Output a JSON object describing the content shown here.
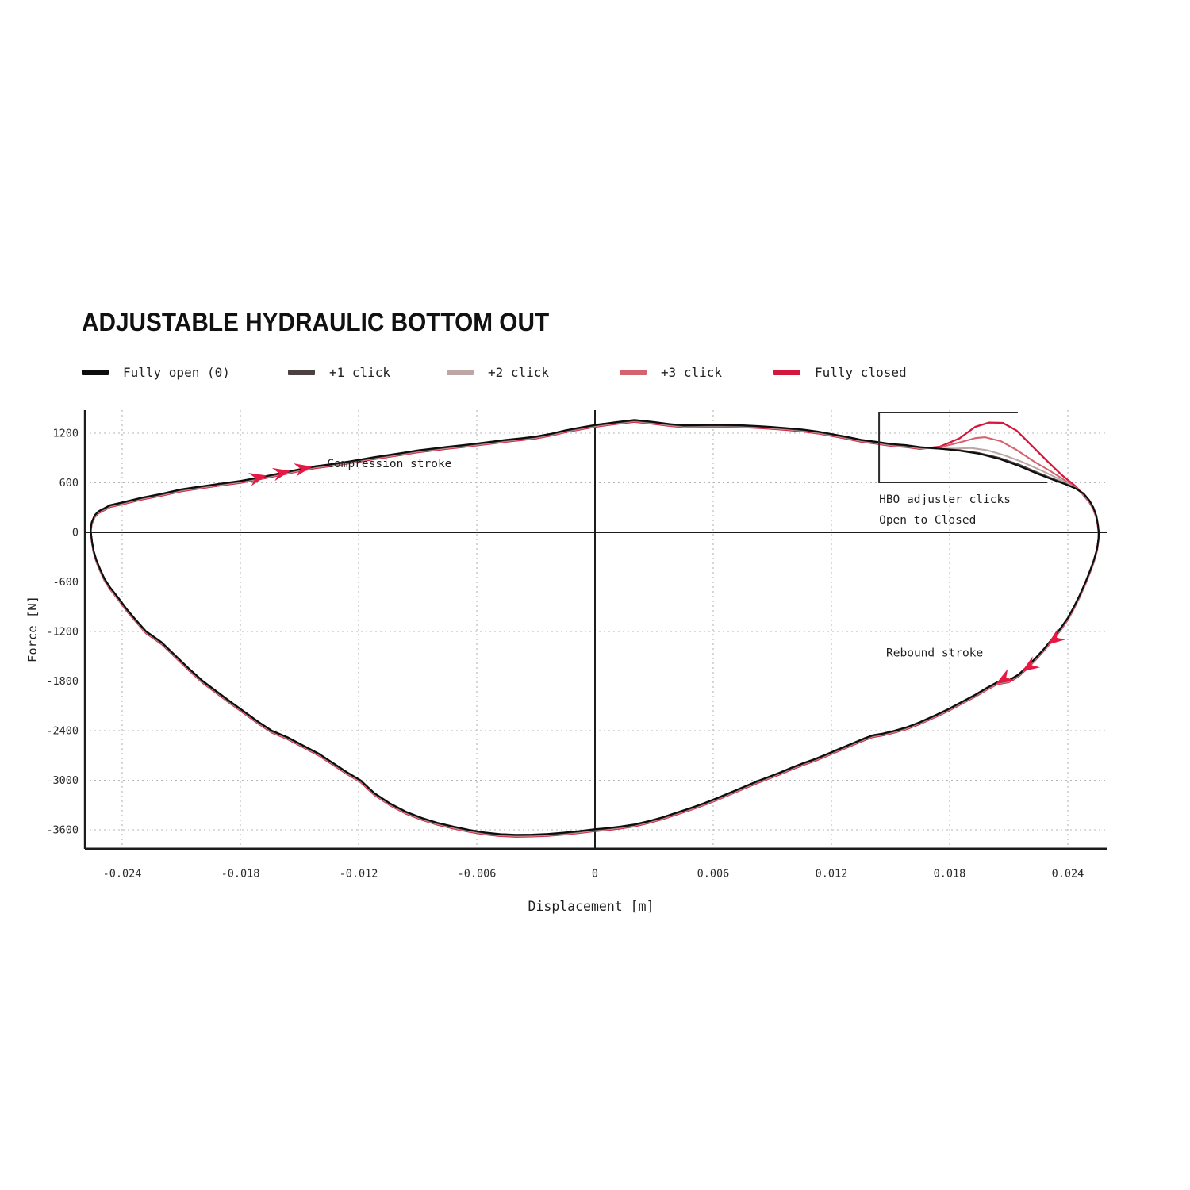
{
  "title": "ADJUSTABLE HYDRAULIC BOTTOM OUT",
  "legend": [
    {
      "label": "Fully open (0)",
      "color": "#0d0d0d"
    },
    {
      "label": "+1 click",
      "color": "#4a4140"
    },
    {
      "label": "+2 click",
      "color": "#bca6a6"
    },
    {
      "label": "+3 click",
      "color": "#d5636f"
    },
    {
      "label": "Fully closed",
      "color": "#d6173c"
    }
  ],
  "chart_data": {
    "type": "line",
    "title": "ADJUSTABLE HYDRAULIC BOTTOM OUT",
    "xlabel": "Displacement [m]",
    "ylabel": "Force [N]",
    "xlim": [
      -0.0259,
      0.026
    ],
    "ylim": [
      -3830,
      1475
    ],
    "grid": true,
    "xticks": [
      {
        "v": -0.024,
        "label": "-0.024"
      },
      {
        "v": -0.018,
        "label": "-0.018"
      },
      {
        "v": -0.012,
        "label": "-0.012"
      },
      {
        "v": -0.006,
        "label": "-0.006"
      },
      {
        "v": 0,
        "label": "0"
      },
      {
        "v": 0.006,
        "label": "0.006"
      },
      {
        "v": 0.012,
        "label": "0.012"
      },
      {
        "v": 0.018,
        "label": "0.018"
      },
      {
        "v": 0.024,
        "label": "0.024"
      }
    ],
    "yticks": [
      {
        "v": 1200,
        "label": "1200"
      },
      {
        "v": 600,
        "label": "600"
      },
      {
        "v": 0,
        "label": "0"
      },
      {
        "v": -600,
        "label": "-600"
      },
      {
        "v": -1200,
        "label": "-1200"
      },
      {
        "v": -1800,
        "label": "-1800"
      },
      {
        "v": -2400,
        "label": "-2400"
      },
      {
        "v": -3000,
        "label": "-3000"
      },
      {
        "v": -3600,
        "label": "-3600"
      }
    ],
    "base_loop": {
      "compression": [
        [
          -0.0256,
          30
        ],
        [
          -0.02555,
          120
        ],
        [
          -0.0254,
          205
        ],
        [
          -0.0252,
          255
        ],
        [
          -0.025,
          280
        ],
        [
          -0.0246,
          330
        ],
        [
          -0.024,
          362
        ],
        [
          -0.023,
          420
        ],
        [
          -0.022,
          467
        ],
        [
          -0.021,
          520
        ],
        [
          -0.02,
          556
        ],
        [
          -0.019,
          590
        ],
        [
          -0.018,
          622
        ],
        [
          -0.0172,
          658
        ],
        [
          -0.0165,
          690
        ],
        [
          -0.0157,
          730
        ],
        [
          -0.015,
          763
        ],
        [
          -0.0142,
          800
        ],
        [
          -0.0135,
          822
        ],
        [
          -0.0127,
          850
        ],
        [
          -0.012,
          877
        ],
        [
          -0.0112,
          910
        ],
        [
          -0.0105,
          935
        ],
        [
          -0.0097,
          965
        ],
        [
          -0.009,
          992
        ],
        [
          -0.0082,
          1015
        ],
        [
          -0.0075,
          1035
        ],
        [
          -0.0067,
          1055
        ],
        [
          -0.006,
          1075
        ],
        [
          -0.0052,
          1098
        ],
        [
          -0.0045,
          1120
        ],
        [
          -0.0037,
          1140
        ],
        [
          -0.003,
          1160
        ],
        [
          -0.0022,
          1195
        ],
        [
          -0.0015,
          1235
        ],
        [
          -0.0007,
          1270
        ],
        [
          0.0,
          1300
        ],
        [
          0.001,
          1332
        ],
        [
          0.002,
          1360
        ],
        [
          0.003,
          1335
        ],
        [
          0.0038,
          1310
        ],
        [
          0.0045,
          1295
        ],
        [
          0.0053,
          1297
        ],
        [
          0.006,
          1300
        ],
        [
          0.0068,
          1298
        ],
        [
          0.0075,
          1295
        ],
        [
          0.0083,
          1285
        ],
        [
          0.009,
          1275
        ],
        [
          0.0098,
          1260
        ],
        [
          0.0105,
          1245
        ],
        [
          0.0113,
          1220
        ],
        [
          0.012,
          1190
        ],
        [
          0.0128,
          1155
        ],
        [
          0.0135,
          1120
        ],
        [
          0.0143,
          1095
        ],
        [
          0.015,
          1070
        ],
        [
          0.0158,
          1055
        ],
        [
          0.0165,
          1032
        ]
      ],
      "dive": [
        [
          0.0248,
          470
        ],
        [
          0.0251,
          385
        ],
        [
          0.0253,
          300
        ],
        [
          0.02545,
          200
        ],
        [
          0.02553,
          90
        ],
        [
          0.02557,
          0
        ]
      ],
      "rebound": [
        [
          0.02556,
          -70
        ],
        [
          0.02548,
          -200
        ],
        [
          0.0253,
          -350
        ],
        [
          0.0251,
          -480
        ],
        [
          0.0249,
          -600
        ],
        [
          0.0246,
          -760
        ],
        [
          0.0243,
          -905
        ],
        [
          0.024,
          -1035
        ],
        [
          0.0236,
          -1170
        ],
        [
          0.0232,
          -1290
        ],
        [
          0.0228,
          -1405
        ],
        [
          0.0224,
          -1510
        ],
        [
          0.022,
          -1610
        ],
        [
          0.0215,
          -1720
        ],
        [
          0.021,
          -1790
        ],
        [
          0.0204,
          -1815
        ],
        [
          0.0199,
          -1880
        ],
        [
          0.0193,
          -1965
        ],
        [
          0.0187,
          -2040
        ],
        [
          0.018,
          -2130
        ],
        [
          0.0173,
          -2210
        ],
        [
          0.0165,
          -2295
        ],
        [
          0.0158,
          -2360
        ],
        [
          0.0152,
          -2400
        ],
        [
          0.0146,
          -2435
        ],
        [
          0.0141,
          -2455
        ],
        [
          0.0137,
          -2490
        ],
        [
          0.013,
          -2560
        ],
        [
          0.0124,
          -2620
        ],
        [
          0.0118,
          -2680
        ],
        [
          0.0112,
          -2740
        ],
        [
          0.0106,
          -2790
        ],
        [
          0.01,
          -2845
        ],
        [
          0.0094,
          -2905
        ],
        [
          0.0088,
          -2960
        ],
        [
          0.0083,
          -3005
        ],
        [
          0.0076,
          -3075
        ],
        [
          0.0069,
          -3145
        ],
        [
          0.0062,
          -3215
        ],
        [
          0.0055,
          -3280
        ],
        [
          0.0048,
          -3340
        ],
        [
          0.0041,
          -3395
        ],
        [
          0.0034,
          -3450
        ],
        [
          0.0027,
          -3495
        ],
        [
          0.002,
          -3535
        ],
        [
          0.0013,
          -3560
        ],
        [
          0.0006,
          -3580
        ],
        [
          0.0,
          -3592
        ],
        [
          -0.0008,
          -3615
        ],
        [
          -0.0016,
          -3635
        ],
        [
          -0.0024,
          -3650
        ],
        [
          -0.0032,
          -3658
        ],
        [
          -0.004,
          -3660
        ],
        [
          -0.0048,
          -3652
        ],
        [
          -0.0056,
          -3632
        ],
        [
          -0.0064,
          -3600
        ],
        [
          -0.0072,
          -3560
        ],
        [
          -0.008,
          -3515
        ],
        [
          -0.0088,
          -3455
        ],
        [
          -0.0096,
          -3380
        ],
        [
          -0.0104,
          -3280
        ],
        [
          -0.0112,
          -3155
        ],
        [
          -0.0119,
          -3000
        ],
        [
          -0.0126,
          -2900
        ],
        [
          -0.0133,
          -2790
        ],
        [
          -0.014,
          -2680
        ],
        [
          -0.0148,
          -2580
        ],
        [
          -0.0156,
          -2480
        ],
        [
          -0.0164,
          -2400
        ],
        [
          -0.0171,
          -2290
        ],
        [
          -0.0178,
          -2170
        ],
        [
          -0.0185,
          -2050
        ],
        [
          -0.0192,
          -1925
        ],
        [
          -0.0199,
          -1800
        ],
        [
          -0.0206,
          -1650
        ],
        [
          -0.0213,
          -1490
        ],
        [
          -0.022,
          -1330
        ],
        [
          -0.0228,
          -1195
        ],
        [
          -0.0233,
          -1060
        ],
        [
          -0.0238,
          -920
        ],
        [
          -0.0242,
          -790
        ],
        [
          -0.0246,
          -670
        ],
        [
          -0.0249,
          -560
        ],
        [
          -0.0251,
          -455
        ],
        [
          -0.0253,
          -340
        ],
        [
          -0.02545,
          -220
        ],
        [
          -0.02553,
          -110
        ],
        [
          -0.02558,
          -15
        ]
      ]
    },
    "series": [
      {
        "name": "Fully open (0)",
        "color": "#0d0d0d",
        "width": 2.1,
        "hbo_compression": [
          [
            0.0175,
            1012
          ],
          [
            0.0185,
            988
          ],
          [
            0.0195,
            950
          ],
          [
            0.0205,
            890
          ],
          [
            0.0215,
            805
          ],
          [
            0.0225,
            705
          ],
          [
            0.0232,
            640
          ],
          [
            0.0239,
            580
          ],
          [
            0.0244,
            530
          ]
        ]
      },
      {
        "name": "+1 click",
        "color": "#4a4140",
        "width": 2.1,
        "hbo_compression": [
          [
            0.0175,
            1018
          ],
          [
            0.0185,
            1000
          ],
          [
            0.0195,
            965
          ],
          [
            0.0205,
            908
          ],
          [
            0.0215,
            828
          ],
          [
            0.0225,
            725
          ],
          [
            0.0232,
            658
          ],
          [
            0.0239,
            592
          ],
          [
            0.0244,
            538
          ]
        ]
      },
      {
        "name": "+2 click",
        "color": "#bca6a6",
        "width": 2.1,
        "hbo_compression": [
          [
            0.0175,
            1025
          ],
          [
            0.0183,
            1025
          ],
          [
            0.0191,
            1032
          ],
          [
            0.0199,
            1005
          ],
          [
            0.0207,
            950
          ],
          [
            0.0217,
            862
          ],
          [
            0.0227,
            755
          ],
          [
            0.0234,
            675
          ],
          [
            0.024,
            600
          ],
          [
            0.0244,
            545
          ]
        ]
      },
      {
        "name": "+3 click",
        "color": "#d5636f",
        "width": 2.1,
        "hbo_compression": [
          [
            0.0175,
            1045
          ],
          [
            0.0185,
            1105
          ],
          [
            0.0193,
            1158
          ],
          [
            0.0198,
            1168
          ],
          [
            0.0206,
            1120
          ],
          [
            0.0214,
            1015
          ],
          [
            0.0223,
            872
          ],
          [
            0.0231,
            760
          ],
          [
            0.0238,
            655
          ],
          [
            0.0244,
            560
          ]
        ]
      },
      {
        "name": "Fully closed",
        "color": "#d6173c",
        "width": 2.3,
        "hbo_compression": [
          [
            0.0175,
            1060
          ],
          [
            0.0185,
            1160
          ],
          [
            0.0193,
            1300
          ],
          [
            0.02,
            1352
          ],
          [
            0.0207,
            1348
          ],
          [
            0.0214,
            1255
          ],
          [
            0.0222,
            1065
          ],
          [
            0.023,
            875
          ],
          [
            0.0237,
            715
          ],
          [
            0.0244,
            580
          ]
        ]
      }
    ],
    "annotations": {
      "compression_label": {
        "text": "Compression stroke",
        "x": -0.0136,
        "f": 787
      },
      "rebound_label": {
        "text": "Rebound stroke",
        "x": 0.01478,
        "f": -1500
      },
      "hbo_label_line1": {
        "text": "HBO adjuster clicks",
        "x": 0.01442,
        "f": 355
      },
      "hbo_label_line2": {
        "text": "Open to Closed",
        "x": 0.01442,
        "f": 106
      },
      "hbo_box": {
        "left_x": 0.01442,
        "top_f": 1450,
        "bottom_f": 605,
        "top_right_x": 0.02146,
        "bottom_right_x": 0.02295
      },
      "arrow_color": "#e51943",
      "compression_arrows": [
        {
          "x": -0.0167,
          "f": 685,
          "angle": -13
        },
        {
          "x": -0.0155,
          "f": 742,
          "angle": -12
        },
        {
          "x": -0.0144,
          "f": 793,
          "angle": -11
        }
      ],
      "rebound_arrows": [
        {
          "x": 0.023,
          "f": -1355,
          "angle": 143
        },
        {
          "x": 0.0217,
          "f": -1680,
          "angle": 146
        },
        {
          "x": 0.0204,
          "f": -1825,
          "angle": 149
        }
      ]
    }
  }
}
